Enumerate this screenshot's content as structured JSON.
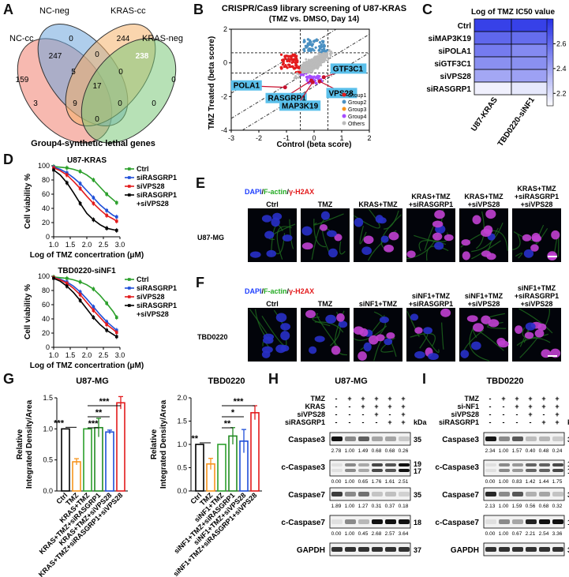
{
  "panel_letters": [
    "A",
    "B",
    "C",
    "D",
    "E",
    "F",
    "G",
    "H",
    "I"
  ],
  "colors": {
    "red": "#e31a1c",
    "blue": "#1f4fd8",
    "green": "#2ca02c",
    "black": "#000000",
    "orange": "#f7941d",
    "purple": "#a64dff",
    "lightblue": "#4a90c2",
    "cyan_label": "#5bc0eb"
  },
  "venn": {
    "title": "Group4-synthetic lethal genes",
    "set_labels": [
      "NC-cc",
      "NC-neg",
      "KRAS-cc",
      "KRAS-neg"
    ],
    "counts": [
      "159",
      "247",
      "0",
      "244",
      "238",
      "0",
      "5",
      "0",
      "17",
      "3",
      "9",
      "0",
      "0",
      "0",
      "0"
    ]
  },
  "chart_data": [
    {
      "type": "scatter",
      "panel": "B",
      "title": "CRISPR/Cas9 library screening of U87-KRAS",
      "subtitle": "(TMZ vs. DMSO, Day 14)",
      "xlabel": "Control (beta score)",
      "ylabel": "TMZ Treated (beta score)",
      "xlim": [
        -3,
        2
      ],
      "ylim": [
        -4,
        2
      ],
      "xticks": [
        "-3",
        "-2",
        "-1",
        "0",
        "1",
        "2"
      ],
      "yticks": [
        "-4",
        "-2",
        "0",
        "2"
      ],
      "legend": [
        "Group1",
        "Group2",
        "Group3",
        "Group4",
        "Others"
      ],
      "highlighted_genes": [
        {
          "name": "POLA1",
          "x": -1.05,
          "y": -1.45
        },
        {
          "name": "RASGRP1",
          "x": -0.1,
          "y": -1.05
        },
        {
          "name": "MAP3K19",
          "x": -0.05,
          "y": -1.15
        },
        {
          "name": "VPS28",
          "x": 0.2,
          "y": -1.1
        },
        {
          "name": "GTF3C1",
          "x": 0.35,
          "y": -0.85
        }
      ]
    },
    {
      "type": "heatmap",
      "panel": "C",
      "title": "Log of TMZ IC50 value",
      "rows": [
        "Ctrl",
        "siMAP3K19",
        "siPOLA1",
        "siGTF3C1",
        "siVPS28",
        "siRASGRP1"
      ],
      "columns": [
        "U87-KRAS",
        "TBD0220-siNF1"
      ],
      "values": [
        [
          2.75,
          2.75
        ],
        [
          2.62,
          2.6
        ],
        [
          2.55,
          2.5
        ],
        [
          2.48,
          2.48
        ],
        [
          2.4,
          2.42
        ],
        [
          2.15,
          2.18
        ]
      ],
      "colorbar_ticks": [
        "2.6",
        "2.4",
        "2.2"
      ],
      "colorbar_range": [
        2.1,
        2.8
      ]
    },
    {
      "type": "line",
      "panel": "D1",
      "title": "U87-KRAS",
      "xlabel": "Log of TMZ concertration (μM)",
      "ylabel": "Cell viability %",
      "xlim": [
        1.0,
        3.0
      ],
      "ylim": [
        0,
        100
      ],
      "xticks": [
        "1.0",
        "1.5",
        "2.0",
        "2.5",
        "3.0"
      ],
      "yticks": [
        "0",
        "20",
        "40",
        "60",
        "80",
        "100"
      ],
      "x": [
        1.0,
        1.2,
        1.4,
        1.6,
        1.8,
        2.0,
        2.2,
        2.4,
        2.6,
        2.8,
        2.9
      ],
      "series": [
        {
          "name": "Ctrl",
          "values": [
            99,
            98,
            97,
            95,
            92,
            87,
            80,
            70,
            60,
            52,
            48
          ]
        },
        {
          "name": "siRASGRP1",
          "values": [
            98,
            95,
            90,
            83,
            75,
            65,
            55,
            45,
            37,
            30,
            28
          ]
        },
        {
          "name": "siVPS28",
          "values": [
            97,
            93,
            87,
            78,
            68,
            57,
            47,
            38,
            30,
            25,
            22
          ]
        },
        {
          "name": "siRASGRP1\n+siVPS28",
          "values": [
            94,
            87,
            76,
            62,
            47,
            33,
            24,
            17,
            12,
            10,
            9
          ]
        }
      ]
    },
    {
      "type": "line",
      "panel": "D2",
      "title": "TBD0220-siNF1",
      "xlabel": "Log of TMZ concertration (μM)",
      "ylabel": "Cell viability %",
      "xlim": [
        1.0,
        3.0
      ],
      "ylim": [
        0,
        100
      ],
      "xticks": [
        "1.0",
        "1.5",
        "2.0",
        "2.5",
        "3.0"
      ],
      "yticks": [
        "0",
        "20",
        "40",
        "60",
        "80",
        "100"
      ],
      "x": [
        1.0,
        1.2,
        1.4,
        1.6,
        1.8,
        2.0,
        2.2,
        2.4,
        2.6,
        2.8,
        2.9
      ],
      "series": [
        {
          "name": "Ctrl",
          "values": [
            99,
            98,
            97,
            95,
            92,
            88,
            82,
            73,
            62,
            50,
            42
          ]
        },
        {
          "name": "siRASGRP1",
          "values": [
            98,
            96,
            92,
            86,
            78,
            68,
            57,
            46,
            36,
            28,
            24
          ]
        },
        {
          "name": "siVPS28",
          "values": [
            98,
            95,
            90,
            83,
            74,
            63,
            52,
            42,
            32,
            25,
            21
          ]
        },
        {
          "name": "siRASGRP1\n+siVPS28",
          "values": [
            97,
            93,
            86,
            77,
            66,
            54,
            42,
            32,
            24,
            18,
            15
          ]
        }
      ]
    },
    {
      "type": "bar",
      "panel": "G1",
      "title": "U87-MG",
      "ylabel": "Relative\nIntegrated Density/Area",
      "ylim": [
        0,
        1.5
      ],
      "yticks": [
        "0.0",
        "0.5",
        "1.0",
        "1.5"
      ],
      "categories": [
        "Ctrl",
        "TMZ",
        "KRAS+TMZ",
        "KRAS+TMZ+siRASGRP1",
        "KRAS+TMZ+siVPS28",
        "KRAS+TMZ+siRASGRP1+siVPS28"
      ],
      "values": [
        1.0,
        0.47,
        1.0,
        1.02,
        0.95,
        1.42
      ],
      "errors": [
        0.0,
        0.05,
        0.0,
        0.15,
        0.03,
        0.1
      ],
      "significance": [
        "***",
        "***",
        "**",
        "***"
      ]
    },
    {
      "type": "bar",
      "panel": "G2",
      "title": "TBD0220",
      "ylabel": "Relative\nIntegrated Density/Area",
      "ylim": [
        0,
        2.0
      ],
      "yticks": [
        "0.0",
        "0.5",
        "1.0",
        "1.5",
        "2.0"
      ],
      "categories": [
        "Ctrl",
        "TMZ",
        "siNF1+TMZ",
        "siNF1+TMZ+siRASGRP1",
        "siNF1+TMZ+siVPS28",
        "siNF1+TMZ+siRASGRP1+siVPS28"
      ],
      "values": [
        1.0,
        0.58,
        1.0,
        1.18,
        1.07,
        1.68
      ],
      "errors": [
        0.0,
        0.12,
        0.0,
        0.18,
        0.25,
        0.15
      ],
      "significance": [
        "**",
        "**",
        "*",
        "***"
      ]
    }
  ],
  "panelE": {
    "legend": [
      "DAPI",
      "/",
      "F-actin",
      "/",
      "γ-H2AX"
    ],
    "row_label": "U87-MG",
    "conditions": [
      "Ctrl",
      "TMZ",
      "KRAS+TMZ",
      "KRAS+TMZ\n+siRASGRP1",
      "KRAS+TMZ\n+siVPS28",
      "KRAS+TMZ\n+siRASGRP1\n+siVPS28"
    ]
  },
  "panelF": {
    "legend": [
      "DAPI",
      "/",
      "F-actin",
      "/",
      "γ-H2AX"
    ],
    "row_label": "TBD0220",
    "conditions": [
      "Ctrl",
      "TMZ",
      "siNF1+TMZ",
      "siNF1+TMZ\n+siRASGRP1",
      "siNF1+TMZ\n+siVPS28",
      "siNF1+TMZ\n+siRASGRP1\n+siVPS28"
    ]
  },
  "panelH": {
    "title": "U87-MG",
    "treatments": [
      {
        "name": "TMZ",
        "marks": [
          "-",
          "+",
          "+",
          "+",
          "+",
          "+"
        ]
      },
      {
        "name": "KRAS",
        "marks": [
          "-",
          "-",
          "+",
          "+",
          "+",
          "+"
        ]
      },
      {
        "name": "siVPS28",
        "marks": [
          "-",
          "-",
          "-",
          "+",
          "-",
          "+"
        ]
      },
      {
        "name": "siRASGRP1",
        "marks": [
          "-",
          "-",
          "-",
          "-",
          "+",
          "+"
        ]
      }
    ],
    "kda_label": "kDa",
    "blots": [
      {
        "name": "Caspase3",
        "kda": [
          "35"
        ],
        "values": [
          "2.78",
          "1.00",
          "1.49",
          "0.68",
          "0.68",
          "0.26"
        ]
      },
      {
        "name": "c-Caspase3",
        "kda": [
          "19",
          "17"
        ],
        "values": [
          "0.00",
          "1.00",
          "0.65",
          "1.76",
          "1.61",
          "2.51"
        ]
      },
      {
        "name": "Caspase7",
        "kda": [
          "35"
        ],
        "values": [
          "1.89",
          "1.00",
          "1.27",
          "0.31",
          "0.37",
          "0.18"
        ]
      },
      {
        "name": "c-Caspase7",
        "kda": [
          "18"
        ],
        "values": [
          "0.00",
          "1.00",
          "0.45",
          "2.68",
          "2.57",
          "3.64"
        ]
      },
      {
        "name": "GAPDH",
        "kda": [
          "37"
        ],
        "values": []
      }
    ]
  },
  "panelI": {
    "title": "TBD0220",
    "treatments": [
      {
        "name": "TMZ",
        "marks": [
          "-",
          "+",
          "+",
          "+",
          "+",
          "+"
        ]
      },
      {
        "name": "si-NF1",
        "marks": [
          "-",
          "-",
          "+",
          "+",
          "+",
          "+"
        ]
      },
      {
        "name": "siVPS28",
        "marks": [
          "-",
          "-",
          "-",
          "+",
          "-",
          "+"
        ]
      },
      {
        "name": "siRASGRP1",
        "marks": [
          "-",
          "-",
          "-",
          "-",
          "+",
          "+"
        ]
      }
    ],
    "kda_label": "kDa",
    "blots": [
      {
        "name": "Caspase3",
        "kda": [
          "35"
        ],
        "values": [
          "2.34",
          "1.00",
          "1.57",
          "0.40",
          "0.48",
          "0.24"
        ]
      },
      {
        "name": "c-Caspase3",
        "kda": [
          "19",
          "17"
        ],
        "values": [
          "0.00",
          "1.00",
          "0.83",
          "1.42",
          "1.44",
          "1.75"
        ]
      },
      {
        "name": "Caspase7",
        "kda": [
          "35"
        ],
        "values": [
          "2.13",
          "1.00",
          "1.59",
          "0.56",
          "0.68",
          "0.32"
        ]
      },
      {
        "name": "c-Caspase7",
        "kda": [
          "18"
        ],
        "values": [
          "0.00",
          "1.00",
          "0.67",
          "2.21",
          "2.54",
          "3.36"
        ]
      },
      {
        "name": "GAPDH",
        "kda": [
          "37"
        ],
        "values": []
      }
    ]
  }
}
